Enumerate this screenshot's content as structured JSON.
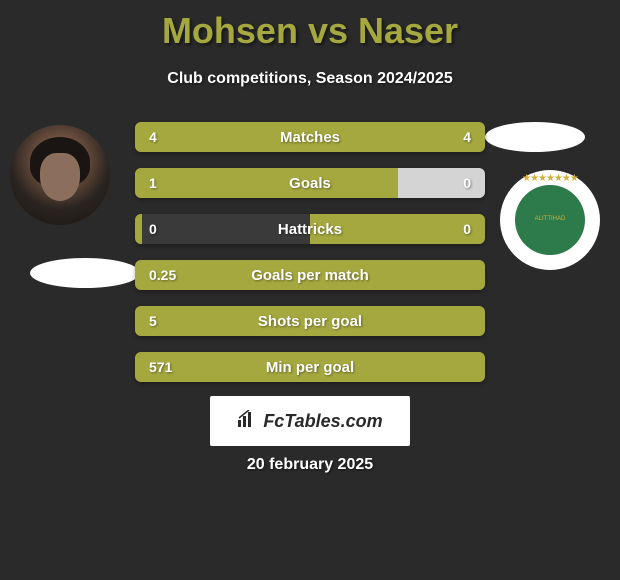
{
  "title": "Mohsen vs Naser",
  "subtitle": "Club competitions, Season 2024/2025",
  "date": "20 february 2025",
  "badge_label": "FcTables.com",
  "colors": {
    "background": "#2a2a2a",
    "accent": "#a5a83f",
    "text_light": "#ffffff",
    "empty_bar": "#d4d4d4",
    "club_green": "#2d7a4a",
    "club_gold": "#d4af37"
  },
  "club_badge": {
    "text": "ALITTIHAD",
    "stars": "★★★★★★★"
  },
  "stats": [
    {
      "label": "Matches",
      "left_value": "4",
      "right_value": "4",
      "left_width": 50,
      "right_width": 50,
      "right_empty": false
    },
    {
      "label": "Goals",
      "left_value": "1",
      "right_value": "0",
      "left_width": 75,
      "right_width": 25,
      "right_empty": true
    },
    {
      "label": "Hattricks",
      "left_value": "0",
      "right_value": "0",
      "left_width": 2,
      "right_width": 50,
      "right_empty": false
    },
    {
      "label": "Goals per match",
      "left_value": "0.25",
      "right_value": "",
      "left_width": 100,
      "right_width": 0,
      "right_empty": false
    },
    {
      "label": "Shots per goal",
      "left_value": "5",
      "right_value": "",
      "left_width": 95,
      "right_width": 5,
      "right_empty": false
    },
    {
      "label": "Min per goal",
      "left_value": "571",
      "right_value": "",
      "left_width": 100,
      "right_width": 0,
      "right_empty": false
    }
  ]
}
